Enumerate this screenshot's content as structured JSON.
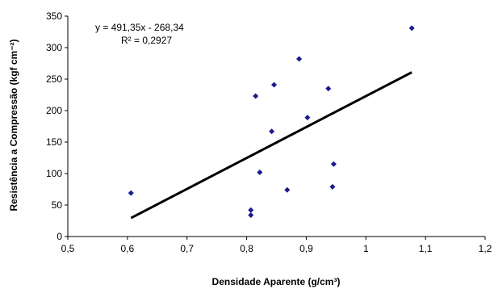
{
  "chart_data": {
    "type": "scatter",
    "title": "",
    "xlabel": "Densidade Aparente (g/cm³)",
    "ylabel": "Resistência a Compressão (kgf cm⁻²)",
    "xlim": [
      0.5,
      1.2
    ],
    "ylim": [
      0,
      350
    ],
    "x_ticks": [
      "0,5",
      "0,6",
      "0,7",
      "0,8",
      "0,9",
      "1",
      "1,1",
      "1,2"
    ],
    "y_ticks": [
      "0",
      "50",
      "100",
      "150",
      "200",
      "250",
      "300",
      "350"
    ],
    "x_tick_values": [
      0.5,
      0.6,
      0.7,
      0.8,
      0.9,
      1.0,
      1.1,
      1.2
    ],
    "y_tick_values": [
      0,
      50,
      100,
      150,
      200,
      250,
      300,
      350
    ],
    "grid": false,
    "marker_color": "#1a1a8c",
    "trendline_color": "#000000",
    "points": [
      {
        "x": 0.606,
        "y": 69
      },
      {
        "x": 0.807,
        "y": 42
      },
      {
        "x": 0.807,
        "y": 34
      },
      {
        "x": 0.815,
        "y": 223
      },
      {
        "x": 0.822,
        "y": 102
      },
      {
        "x": 0.842,
        "y": 167
      },
      {
        "x": 0.846,
        "y": 241
      },
      {
        "x": 0.868,
        "y": 74
      },
      {
        "x": 0.888,
        "y": 282
      },
      {
        "x": 0.902,
        "y": 189
      },
      {
        "x": 0.937,
        "y": 235
      },
      {
        "x": 0.944,
        "y": 79
      },
      {
        "x": 0.946,
        "y": 115
      },
      {
        "x": 1.077,
        "y": 331
      }
    ],
    "trendline": {
      "slope": 491.35,
      "intercept": -268.34,
      "x_start": 0.606,
      "x_end": 1.077
    },
    "equation_label": "y = 491,35x - 268,34",
    "r2_label": "R² = 0,2927"
  }
}
